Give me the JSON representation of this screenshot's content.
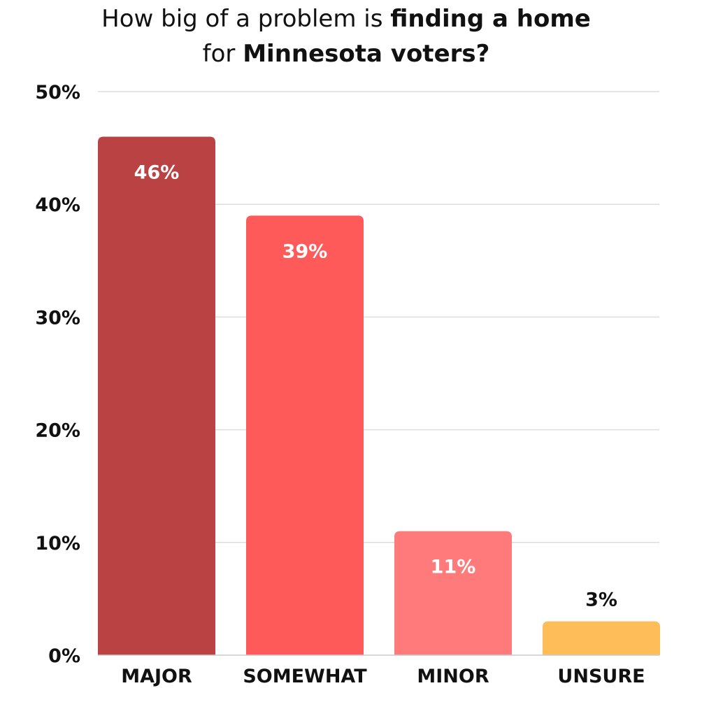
{
  "chart_data": {
    "type": "bar",
    "title": {
      "line1_regular": "How  big of a problem is ",
      "line1_bold": "finding a home",
      "line2_regular": "for ",
      "line2_bold": "Minnesota voters?"
    },
    "categories": [
      "MAJOR",
      "SOMEWHAT",
      "MINOR",
      "UNSURE"
    ],
    "values": [
      46,
      39,
      11,
      3
    ],
    "data_labels": [
      "46%",
      "39%",
      "11%",
      "3%"
    ],
    "colors": [
      "#bb4243",
      "#ff5a5a",
      "#ff7b7b",
      "#ffbd5a"
    ],
    "data_label_colors": [
      "#ffffff",
      "#ffffff",
      "#ffffff",
      "#111111"
    ],
    "y_ticks": [
      0,
      10,
      20,
      30,
      40,
      50
    ],
    "y_tick_labels": [
      "0%",
      "10%",
      "20%",
      "30%",
      "40%",
      "50%"
    ],
    "ylim": [
      0,
      50
    ],
    "grid": true,
    "gridline_color": "#dddddd",
    "legend": "none"
  }
}
